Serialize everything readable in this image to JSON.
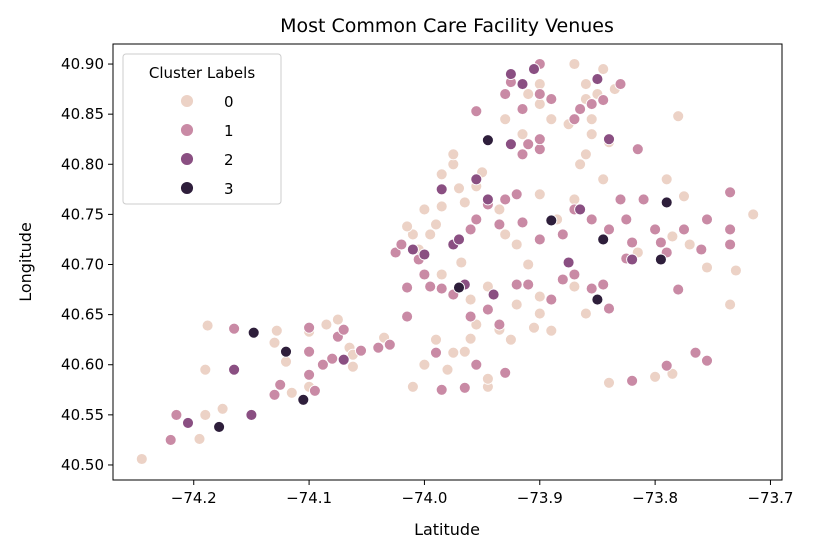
{
  "chart_data": {
    "type": "scatter",
    "title": "Most Common Care Facility Venues",
    "xlabel": "Latitude",
    "ylabel": "Longitude",
    "xlim": [
      -74.27,
      -73.69
    ],
    "ylim": [
      40.485,
      40.92
    ],
    "xticks": [
      -74.2,
      -74.1,
      -74.0,
      -73.9,
      -73.8,
      -73.7
    ],
    "xtick_labels": [
      "−74.2",
      "−74.1",
      "−74.0",
      "−73.9",
      "−73.8",
      "−73.7"
    ],
    "yticks": [
      40.5,
      40.55,
      40.6,
      40.65,
      40.7,
      40.75,
      40.8,
      40.85,
      40.9
    ],
    "ytick_labels": [
      "40.50",
      "40.55",
      "40.60",
      "40.65",
      "40.70",
      "40.75",
      "40.80",
      "40.85",
      "40.90"
    ],
    "grid": false,
    "legend": {
      "title": "Cluster Labels",
      "position": "top-left",
      "entries": [
        {
          "label": "0",
          "color": "#ecd2c6"
        },
        {
          "label": "1",
          "color": "#c98aa5"
        },
        {
          "label": "2",
          "color": "#8a4f82"
        },
        {
          "label": "3",
          "color": "#2e1e3b"
        }
      ]
    },
    "series": [
      {
        "name": "0",
        "color": "#ecd2c6",
        "points": [
          [
            -74.245,
            40.506
          ],
          [
            -74.195,
            40.526
          ],
          [
            -74.19,
            40.55
          ],
          [
            -74.175,
            40.556
          ],
          [
            -74.19,
            40.595
          ],
          [
            -74.188,
            40.639
          ],
          [
            -74.13,
            40.622
          ],
          [
            -74.128,
            40.634
          ],
          [
            -74.12,
            40.603
          ],
          [
            -74.115,
            40.572
          ],
          [
            -74.1,
            40.578
          ],
          [
            -74.1,
            40.633
          ],
          [
            -74.085,
            40.64
          ],
          [
            -74.075,
            40.645
          ],
          [
            -74.065,
            40.617
          ],
          [
            -74.062,
            40.61
          ],
          [
            -74.062,
            40.598
          ],
          [
            -74.035,
            40.627
          ],
          [
            -74.01,
            40.578
          ],
          [
            -74.0,
            40.6
          ],
          [
            -73.99,
            40.625
          ],
          [
            -73.98,
            40.595
          ],
          [
            -73.975,
            40.612
          ],
          [
            -73.965,
            40.613
          ],
          [
            -73.96,
            40.626
          ],
          [
            -73.955,
            40.64
          ],
          [
            -73.945,
            40.578
          ],
          [
            -73.945,
            40.586
          ],
          [
            -73.935,
            40.635
          ],
          [
            -73.925,
            40.625
          ],
          [
            -73.905,
            40.637
          ],
          [
            -73.9,
            40.651
          ],
          [
            -73.9,
            40.668
          ],
          [
            -73.89,
            40.634
          ],
          [
            -73.86,
            40.651
          ],
          [
            -73.87,
            40.678
          ],
          [
            -73.96,
            40.665
          ],
          [
            -73.968,
            40.702
          ],
          [
            -73.985,
            40.69
          ],
          [
            -74.005,
            40.715
          ],
          [
            -74.01,
            40.73
          ],
          [
            -74.015,
            40.738
          ],
          [
            -73.995,
            40.73
          ],
          [
            -73.99,
            40.74
          ],
          [
            -74.0,
            40.755
          ],
          [
            -73.985,
            40.758
          ],
          [
            -73.965,
            40.762
          ],
          [
            -73.97,
            40.776
          ],
          [
            -73.955,
            40.778
          ],
          [
            -73.95,
            40.792
          ],
          [
            -73.975,
            40.8
          ],
          [
            -73.975,
            40.81
          ],
          [
            -73.985,
            40.79
          ],
          [
            -73.93,
            40.73
          ],
          [
            -73.92,
            40.72
          ],
          [
            -73.935,
            40.755
          ],
          [
            -73.9,
            40.77
          ],
          [
            -73.885,
            40.745
          ],
          [
            -73.87,
            40.765
          ],
          [
            -73.865,
            40.8
          ],
          [
            -73.86,
            40.81
          ],
          [
            -73.855,
            40.83
          ],
          [
            -73.845,
            40.785
          ],
          [
            -73.84,
            40.822
          ],
          [
            -73.855,
            40.845
          ],
          [
            -73.86,
            40.865
          ],
          [
            -73.85,
            40.87
          ],
          [
            -73.835,
            40.875
          ],
          [
            -73.87,
            40.9
          ],
          [
            -73.86,
            40.88
          ],
          [
            -73.845,
            40.895
          ],
          [
            -73.9,
            40.88
          ],
          [
            -73.91,
            40.87
          ],
          [
            -73.915,
            40.83
          ],
          [
            -73.93,
            40.845
          ],
          [
            -73.9,
            40.86
          ],
          [
            -73.89,
            40.845
          ],
          [
            -73.875,
            40.84
          ],
          [
            -73.78,
            40.848
          ],
          [
            -73.79,
            40.785
          ],
          [
            -73.775,
            40.768
          ],
          [
            -73.77,
            40.72
          ],
          [
            -73.755,
            40.697
          ],
          [
            -73.73,
            40.694
          ],
          [
            -73.735,
            40.66
          ],
          [
            -73.715,
            40.75
          ],
          [
            -73.785,
            40.728
          ],
          [
            -73.815,
            40.712
          ],
          [
            -73.8,
            40.588
          ],
          [
            -73.785,
            40.591
          ],
          [
            -73.84,
            40.582
          ],
          [
            -73.91,
            40.7
          ],
          [
            -73.92,
            40.66
          ],
          [
            -73.945,
            40.678
          ]
        ]
      },
      {
        "name": "1",
        "color": "#c98aa5",
        "points": [
          [
            -74.22,
            40.525
          ],
          [
            -74.215,
            40.55
          ],
          [
            -74.165,
            40.636
          ],
          [
            -74.13,
            40.57
          ],
          [
            -74.125,
            40.58
          ],
          [
            -74.1,
            40.637
          ],
          [
            -74.1,
            40.613
          ],
          [
            -74.1,
            40.59
          ],
          [
            -74.095,
            40.574
          ],
          [
            -74.088,
            40.6
          ],
          [
            -74.08,
            40.606
          ],
          [
            -74.075,
            40.628
          ],
          [
            -74.07,
            40.635
          ],
          [
            -74.055,
            40.614
          ],
          [
            -74.04,
            40.617
          ],
          [
            -74.03,
            40.62
          ],
          [
            -74.015,
            40.648
          ],
          [
            -74.015,
            40.677
          ],
          [
            -74.025,
            40.712
          ],
          [
            -74.02,
            40.72
          ],
          [
            -74.005,
            40.705
          ],
          [
            -74.0,
            40.69
          ],
          [
            -73.995,
            40.678
          ],
          [
            -73.985,
            40.676
          ],
          [
            -73.975,
            40.67
          ],
          [
            -73.99,
            40.612
          ],
          [
            -73.985,
            40.575
          ],
          [
            -73.965,
            40.577
          ],
          [
            -73.955,
            40.6
          ],
          [
            -73.96,
            40.648
          ],
          [
            -73.945,
            40.655
          ],
          [
            -73.935,
            40.64
          ],
          [
            -73.93,
            40.592
          ],
          [
            -73.92,
            40.68
          ],
          [
            -73.91,
            40.68
          ],
          [
            -73.89,
            40.665
          ],
          [
            -73.88,
            40.685
          ],
          [
            -73.87,
            40.69
          ],
          [
            -73.855,
            40.676
          ],
          [
            -73.845,
            40.68
          ],
          [
            -73.84,
            40.656
          ],
          [
            -73.96,
            40.735
          ],
          [
            -73.955,
            40.745
          ],
          [
            -73.945,
            40.76
          ],
          [
            -73.935,
            40.74
          ],
          [
            -73.93,
            40.765
          ],
          [
            -73.92,
            40.77
          ],
          [
            -73.915,
            40.742
          ],
          [
            -73.9,
            40.725
          ],
          [
            -73.88,
            40.73
          ],
          [
            -73.87,
            40.755
          ],
          [
            -73.855,
            40.745
          ],
          [
            -73.84,
            40.735
          ],
          [
            -73.83,
            40.765
          ],
          [
            -73.825,
            40.745
          ],
          [
            -73.82,
            40.722
          ],
          [
            -73.81,
            40.765
          ],
          [
            -73.8,
            40.735
          ],
          [
            -73.795,
            40.722
          ],
          [
            -73.79,
            40.712
          ],
          [
            -73.775,
            40.735
          ],
          [
            -73.76,
            40.715
          ],
          [
            -73.755,
            40.745
          ],
          [
            -73.735,
            40.735
          ],
          [
            -73.735,
            40.72
          ],
          [
            -73.735,
            40.772
          ],
          [
            -73.78,
            40.675
          ],
          [
            -73.765,
            40.612
          ],
          [
            -73.755,
            40.604
          ],
          [
            -73.82,
            40.584
          ],
          [
            -73.79,
            40.599
          ],
          [
            -73.9,
            40.815
          ],
          [
            -73.9,
            40.825
          ],
          [
            -73.91,
            40.82
          ],
          [
            -73.915,
            40.81
          ],
          [
            -73.93,
            40.87
          ],
          [
            -73.925,
            40.882
          ],
          [
            -73.915,
            40.855
          ],
          [
            -73.9,
            40.87
          ],
          [
            -73.9,
            40.9
          ],
          [
            -73.89,
            40.865
          ],
          [
            -73.87,
            40.845
          ],
          [
            -73.865,
            40.855
          ],
          [
            -73.855,
            40.86
          ],
          [
            -73.85,
            40.885
          ],
          [
            -73.845,
            40.864
          ],
          [
            -73.83,
            40.88
          ],
          [
            -73.815,
            40.815
          ],
          [
            -73.825,
            40.706
          ],
          [
            -73.955,
            40.853
          ]
        ]
      },
      {
        "name": "2",
        "color": "#8a4f82",
        "points": [
          [
            -74.205,
            40.542
          ],
          [
            -74.165,
            40.595
          ],
          [
            -74.15,
            40.55
          ],
          [
            -74.07,
            40.605
          ],
          [
            -74.01,
            40.715
          ],
          [
            -73.985,
            40.775
          ],
          [
            -73.975,
            40.72
          ],
          [
            -73.97,
            40.725
          ],
          [
            -73.965,
            40.68
          ],
          [
            -73.955,
            40.785
          ],
          [
            -73.945,
            40.765
          ],
          [
            -73.94,
            40.67
          ],
          [
            -73.925,
            40.82
          ],
          [
            -73.915,
            40.88
          ],
          [
            -73.905,
            40.895
          ],
          [
            -73.875,
            40.702
          ],
          [
            -73.865,
            40.755
          ],
          [
            -73.85,
            40.885
          ],
          [
            -73.84,
            40.825
          ],
          [
            -73.82,
            40.705
          ],
          [
            -74.0,
            40.71
          ],
          [
            -73.925,
            40.89
          ]
        ]
      },
      {
        "name": "3",
        "color": "#2e1e3b",
        "points": [
          [
            -74.178,
            40.538
          ],
          [
            -74.148,
            40.632
          ],
          [
            -74.12,
            40.613
          ],
          [
            -74.105,
            40.565
          ],
          [
            -73.97,
            40.677
          ],
          [
            -73.945,
            40.824
          ],
          [
            -73.89,
            40.744
          ],
          [
            -73.85,
            40.665
          ],
          [
            -73.845,
            40.725
          ],
          [
            -73.795,
            40.705
          ],
          [
            -73.79,
            40.762
          ]
        ]
      }
    ]
  }
}
